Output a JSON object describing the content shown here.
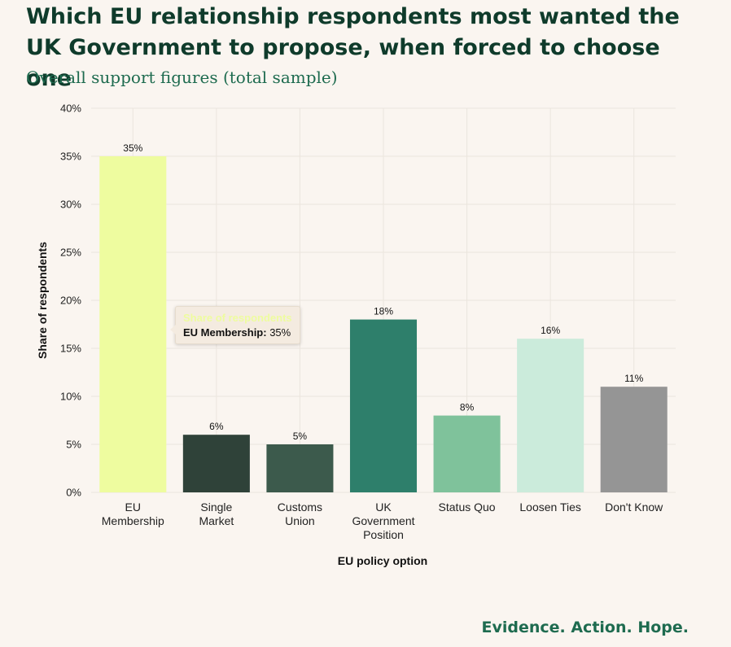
{
  "chart_data": {
    "type": "bar",
    "title": "Which EU relationship respondents most wanted the UK Government to propose, when forced to choose one",
    "subtitle": "Overall support figures (total sample)",
    "xlabel": "EU policy option",
    "ylabel": "Share of respondents",
    "ylim": [
      0,
      40
    ],
    "yticks": [
      "0%",
      "5%",
      "10%",
      "15%",
      "20%",
      "25%",
      "30%",
      "35%",
      "40%"
    ],
    "grid": true,
    "categories": [
      [
        "EU",
        "Membership"
      ],
      [
        "Single",
        "Market"
      ],
      [
        "Customs",
        "Union"
      ],
      [
        "UK",
        "Government",
        "Position"
      ],
      [
        "Status Quo"
      ],
      [
        "Loosen Ties"
      ],
      [
        "Don't Know"
      ]
    ],
    "values": [
      35,
      6,
      5,
      18,
      8,
      16,
      11
    ],
    "value_labels": [
      "35%",
      "6%",
      "5%",
      "18%",
      "8%",
      "16%",
      "11%"
    ],
    "colors": [
      "#eefc9f",
      "#2f4239",
      "#3c5a4c",
      "#2e7f6b",
      "#7fc29b",
      "#cbebdb",
      "#959595"
    ]
  },
  "tooltip": {
    "header": "Share of respondents",
    "category": "EU Membership:",
    "value": "35%"
  },
  "footer": {
    "tagline": "Evidence. Action. Hope."
  }
}
